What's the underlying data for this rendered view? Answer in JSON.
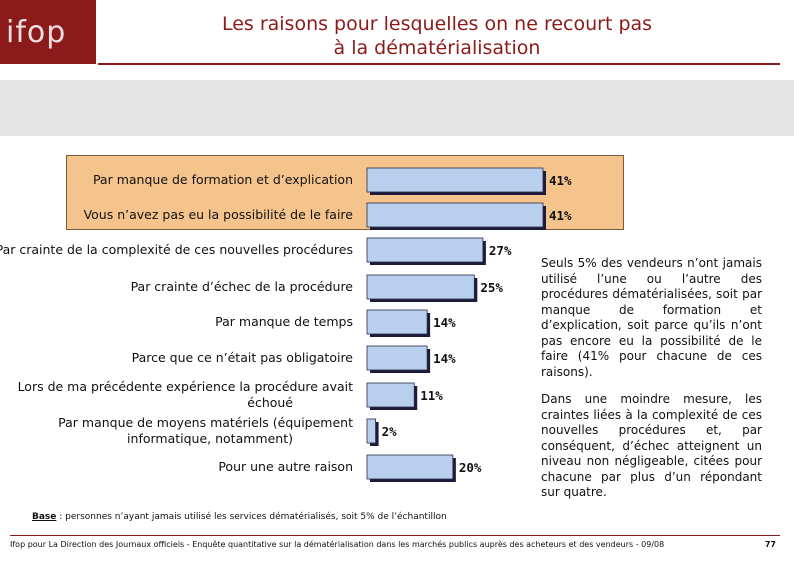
{
  "header": {
    "logo_text": "ifop",
    "title_line1": "Les raisons pour lesquelles on ne recourt pas",
    "title_line2": "à la dématérialisation"
  },
  "colors": {
    "brand": "#8b1a1a",
    "bar_fill": "#b8d0ee",
    "bar_border": "#2b2b4a",
    "highlight": "#f5c48c"
  },
  "chart_data": {
    "type": "bar",
    "orientation": "horizontal",
    "unit": "%",
    "categories": [
      [
        "Par manque de formation et d’explication"
      ],
      [
        "Vous n’avez pas eu la possibilité de le faire"
      ],
      [
        "Par crainte de la complexité de ces nouvelles procédures"
      ],
      [
        "Par crainte d’échec de la procédure"
      ],
      [
        "Par manque de temps"
      ],
      [
        "Parce que ce n’était pas obligatoire"
      ],
      [
        "Lors de ma précédente expérience la procédure avait",
        "échoué"
      ],
      [
        "Par manque de moyens matériels (équipement",
        "informatique, notamment)"
      ],
      [
        "Pour une autre raison"
      ]
    ],
    "values": [
      41,
      41,
      27,
      25,
      14,
      14,
      11,
      2,
      20
    ],
    "value_labels": [
      "41%",
      "41%",
      "27%",
      "25%",
      "14%",
      "14%",
      "11%",
      "2%",
      "20%"
    ],
    "highlighted": [
      0,
      1
    ],
    "xlim": [
      0,
      45
    ]
  },
  "commentary": {
    "paragraph1": "Seuls 5% des vendeurs n’ont jamais utilisé l’une ou l’autre des procédures dématérialisées, soit par manque de formation et d’explication, soit parce qu’ils n’ont pas encore eu la possibilité de le faire (41% pour chacune de ces raisons).",
    "paragraph2": "Dans une moindre mesure, les craintes liées à la complexité de ces nouvelles procédures et, par conséquent, d’échec atteignent un niveau non négligeable, citées pour chacune par plus d’un répondant sur quatre."
  },
  "base": {
    "label": "Base",
    "text": " : personnes n’ayant jamais utilisé les services dématérialisés, soit 5% de l’échantillon"
  },
  "footer": {
    "source": "Ifop pour La Direction des Journaux officiels - Enquête quantitative sur la dématérialisation dans les marchés publics auprès des acheteurs et des vendeurs - 09/08",
    "page_number": "77"
  }
}
